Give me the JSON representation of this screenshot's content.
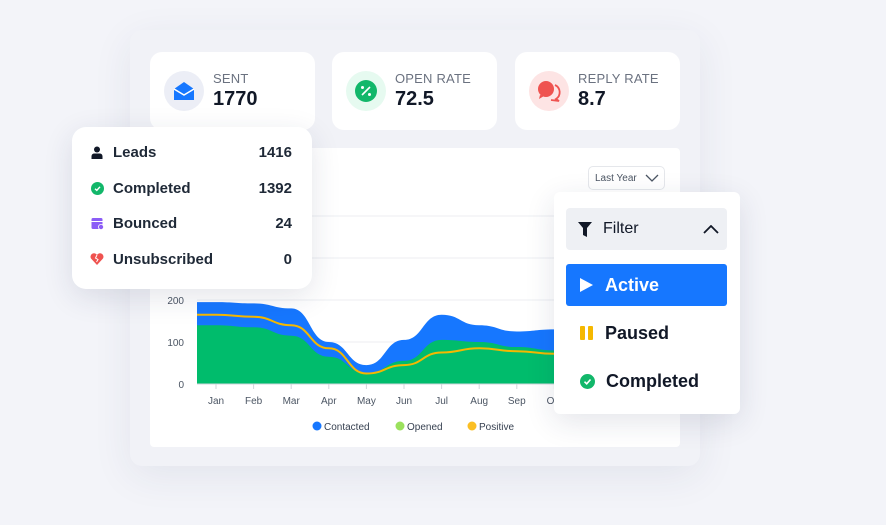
{
  "stats": [
    {
      "label": "SENT",
      "value": "1770",
      "icon": "envelope-open-icon",
      "color": "#1677ff",
      "bg": "#eceef6"
    },
    {
      "label": "OPEN RATE",
      "value": "72.5",
      "icon": "percent-icon",
      "color": "#12b76a",
      "bg": "#e6faf0"
    },
    {
      "label": "REPLY RATE",
      "value": "8.7",
      "icon": "chat-bubbles-icon",
      "color": "#ef5350",
      "bg": "#fde4e4"
    }
  ],
  "period_select": {
    "value": "Last Year"
  },
  "leads_summary": [
    {
      "label": "Leads",
      "value": "1416",
      "icon": "user-icon",
      "color": "#111827"
    },
    {
      "label": "Completed",
      "value": "1392",
      "icon": "check-circle-icon",
      "color": "#12b76a"
    },
    {
      "label": "Bounced",
      "value": "24",
      "icon": "calendar-x-icon",
      "color": "#8b5cf6"
    },
    {
      "label": "Unsubscribed",
      "value": "0",
      "icon": "broken-heart-icon",
      "color": "#ef5350"
    }
  ],
  "filter": {
    "title": "Filter",
    "items": [
      {
        "label": "Active",
        "icon": "play-icon",
        "selected": true
      },
      {
        "label": "Paused",
        "icon": "pause-icon",
        "color": "#f5b800"
      },
      {
        "label": "Completed",
        "icon": "check-circle-icon",
        "color": "#12b76a"
      }
    ]
  },
  "chart_data": {
    "type": "area",
    "categories": [
      "Jan",
      "Feb",
      "Mar",
      "Apr",
      "May",
      "Jun",
      "Jul",
      "Aug",
      "Sep",
      "Oct"
    ],
    "ylim": [
      0,
      400
    ],
    "yticks": [
      0,
      100,
      200
    ],
    "grid": true,
    "legend_placement": "bottom",
    "series": [
      {
        "name": "Contacted",
        "color": "#1677ff",
        "values": [
          195,
          192,
          180,
          100,
          45,
          105,
          165,
          140,
          125,
          130
        ]
      },
      {
        "name": "Opened",
        "color": "#00bc6c",
        "legend_color": "#9be15d",
        "values": [
          140,
          135,
          115,
          65,
          25,
          55,
          105,
          100,
          88,
          80
        ]
      },
      {
        "name": "Positive",
        "color": "#f5b800",
        "legend_color": "#fbbf24",
        "values": [
          165,
          160,
          140,
          85,
          25,
          45,
          75,
          85,
          78,
          72
        ]
      }
    ]
  }
}
